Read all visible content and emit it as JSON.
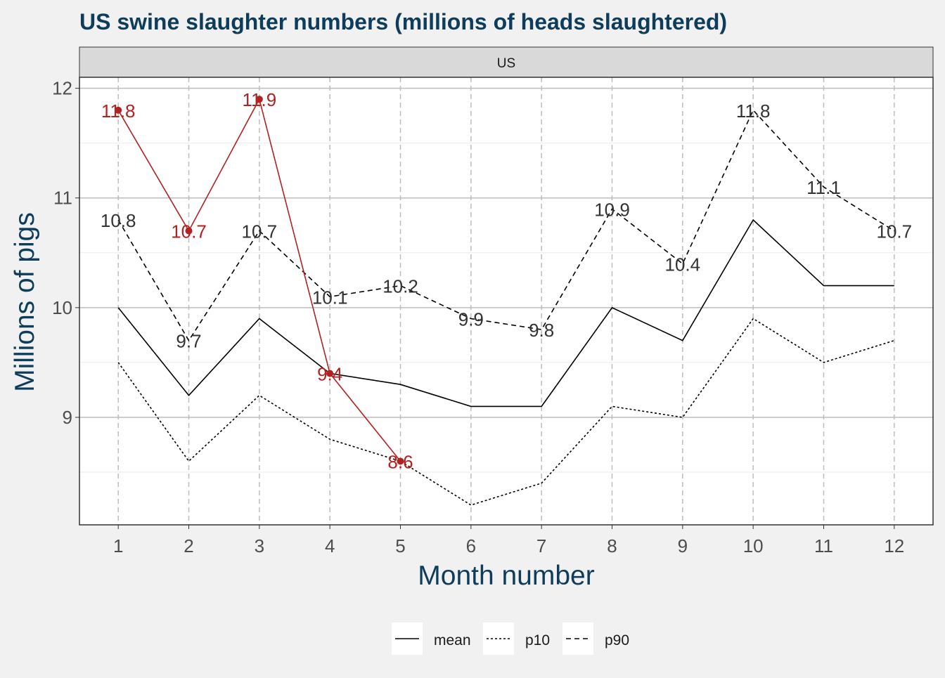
{
  "chart_data": {
    "type": "line",
    "title": "US swine slaughter numbers (millions of heads slaughtered)",
    "facet_label": "US",
    "xlabel": "Month number",
    "ylabel": "Millions of pigs",
    "x": [
      1,
      2,
      3,
      4,
      5,
      6,
      7,
      8,
      9,
      10,
      11,
      12
    ],
    "xlim": [
      0.45,
      12.55
    ],
    "ylim": [
      8.02,
      12.1
    ],
    "y_ticks": [
      9,
      10,
      11,
      12
    ],
    "grid": true,
    "legend_position": "bottom",
    "series": [
      {
        "name": "mean",
        "style": "solid",
        "color": "#000000",
        "values": [
          10.0,
          9.2,
          9.9,
          9.4,
          9.3,
          9.1,
          9.1,
          10.0,
          9.7,
          10.8,
          10.2,
          10.2
        ]
      },
      {
        "name": "p10",
        "style": "dotted",
        "color": "#000000",
        "values": [
          9.5,
          8.6,
          9.2,
          8.8,
          8.6,
          8.2,
          8.4,
          9.1,
          9.0,
          9.9,
          9.5,
          9.7
        ]
      },
      {
        "name": "p90",
        "style": "dashed",
        "color": "#000000",
        "values": [
          10.8,
          9.7,
          10.7,
          10.1,
          10.2,
          9.9,
          9.8,
          10.9,
          10.4,
          11.8,
          11.1,
          10.7
        ],
        "labels": [
          "10.8",
          "9.7",
          "10.7",
          "10.1",
          "10.2",
          "9.9",
          "9.8",
          "10.9",
          "10.4",
          "11.8",
          "11.1",
          "10.7"
        ]
      },
      {
        "style": "solid",
        "color": "#b22222",
        "markers": true,
        "x": [
          1,
          2,
          3,
          4,
          5
        ],
        "values": [
          11.8,
          10.7,
          11.9,
          9.4,
          8.6
        ],
        "labels": [
          "11.8",
          "10.7",
          "11.9",
          "9.4",
          "8.6"
        ]
      }
    ]
  }
}
